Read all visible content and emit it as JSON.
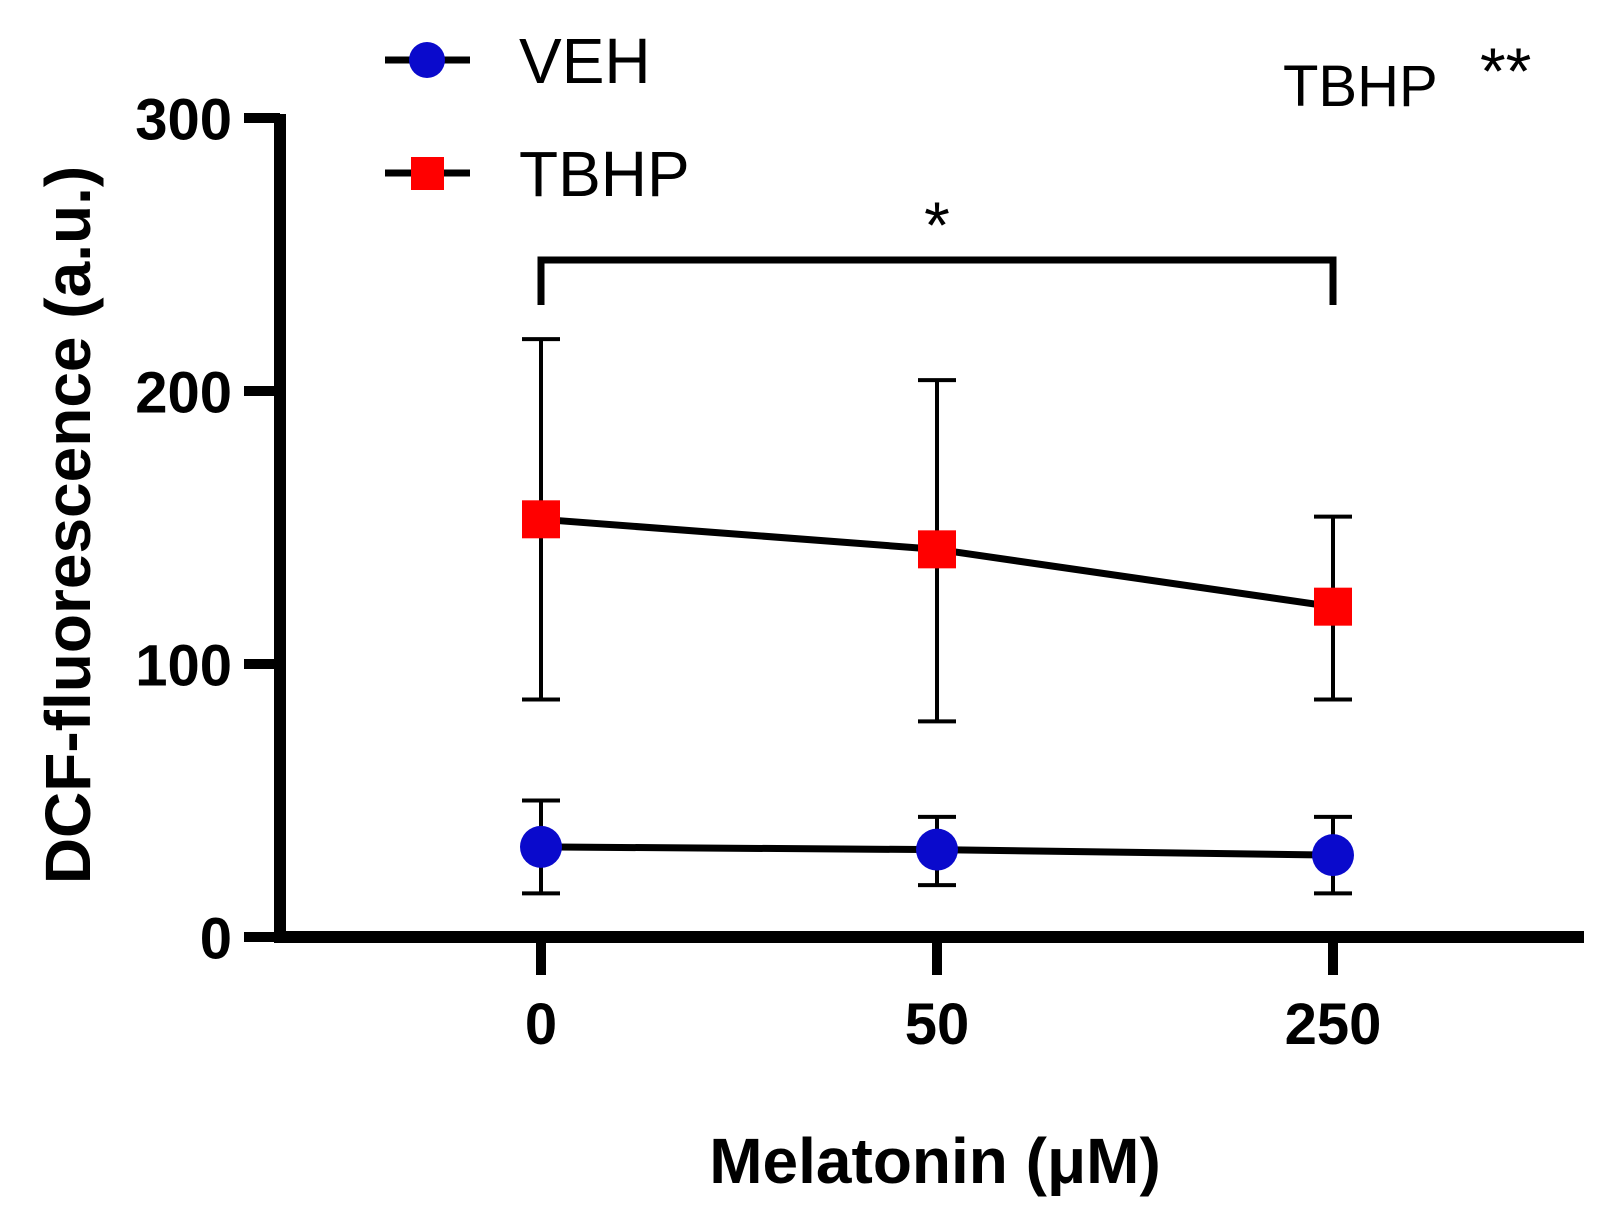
{
  "chart_data": {
    "type": "line",
    "title": "",
    "xlabel": "Melatonin (μM)",
    "ylabel": "DCF-fluorescence (a.u.)",
    "categories": [
      "0",
      "50",
      "250"
    ],
    "ylim": [
      0,
      300
    ],
    "yticks": [
      0,
      100,
      200,
      300
    ],
    "series": [
      {
        "name": "VEH",
        "marker": "circle",
        "color": "#0a0acc",
        "values": [
          33,
          32,
          30
        ],
        "error_low": [
          16,
          19,
          16
        ],
        "error_high": [
          50,
          44,
          44
        ]
      },
      {
        "name": "TBHP",
        "marker": "square",
        "color": "#ff0000",
        "values": [
          153,
          142,
          121
        ],
        "error_low": [
          87,
          79,
          87
        ],
        "error_high": [
          219,
          204,
          154
        ]
      }
    ],
    "annotations": {
      "corner_label": "TBHP",
      "corner_stars": "**",
      "bracket_label": "*",
      "bracket_from": "0",
      "bracket_to": "250",
      "bracket_level": 248
    }
  }
}
